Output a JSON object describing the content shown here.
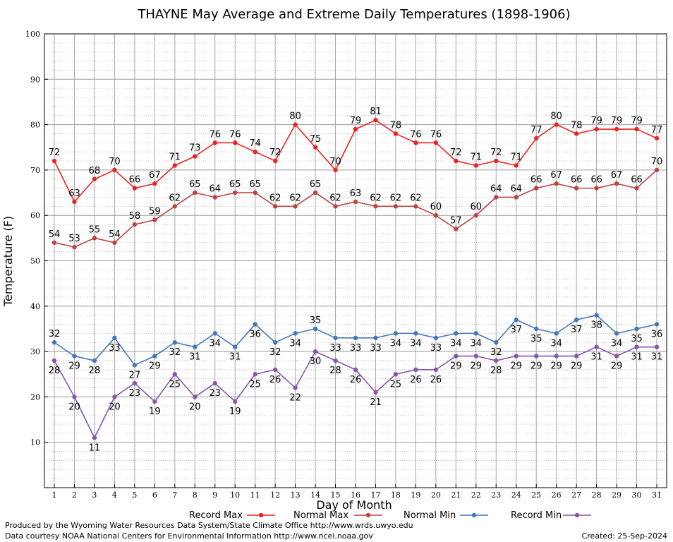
{
  "chart_data": {
    "type": "line",
    "title": "THAYNE May Average and Extreme Daily Temperatures (1898-1906)",
    "xlabel": "Day of Month",
    "ylabel": "Temperature (F)",
    "x": [
      1,
      2,
      3,
      4,
      5,
      6,
      7,
      8,
      9,
      10,
      11,
      12,
      13,
      14,
      15,
      16,
      17,
      18,
      19,
      20,
      21,
      22,
      23,
      24,
      25,
      26,
      27,
      28,
      29,
      30,
      31
    ],
    "ylim": [
      0,
      100
    ],
    "yticks": [
      10,
      20,
      30,
      40,
      50,
      60,
      70,
      80,
      90,
      100
    ],
    "grid": true,
    "legend_position": "bottom",
    "series": [
      {
        "name": "Record Max",
        "color": "#ee2222",
        "label_position": "above",
        "values": [
          72,
          63,
          68,
          70,
          66,
          67,
          71,
          73,
          76,
          76,
          74,
          72,
          80,
          75,
          70,
          79,
          81,
          78,
          76,
          76,
          72,
          71,
          72,
          71,
          77,
          80,
          78,
          79,
          79,
          79,
          77
        ]
      },
      {
        "name": "Normal Max",
        "color": "#bb4444",
        "label_position": "above",
        "values": [
          54,
          53,
          55,
          54,
          58,
          59,
          62,
          65,
          64,
          65,
          65,
          62,
          62,
          65,
          62,
          63,
          62,
          62,
          62,
          60,
          57,
          60,
          64,
          64,
          66,
          67,
          66,
          66,
          67,
          66,
          70
        ]
      },
      {
        "name": "Normal Min",
        "color": "#4477bb",
        "label_position": "mixed",
        "values": [
          32,
          29,
          28,
          33,
          27,
          29,
          32,
          31,
          34,
          31,
          36,
          32,
          34,
          35,
          33,
          33,
          33,
          34,
          34,
          33,
          34,
          34,
          32,
          37,
          35,
          34,
          37,
          38,
          34,
          35,
          36
        ],
        "label_above": [
          true,
          false,
          false,
          false,
          false,
          false,
          false,
          false,
          false,
          false,
          false,
          false,
          false,
          true,
          false,
          false,
          false,
          false,
          false,
          false,
          false,
          false,
          false,
          false,
          false,
          false,
          false,
          false,
          false,
          false,
          false
        ]
      },
      {
        "name": "Record Min",
        "color": "#8855aa",
        "label_position": "mixed",
        "values": [
          28,
          20,
          11,
          20,
          23,
          19,
          25,
          20,
          23,
          19,
          25,
          26,
          22,
          30,
          28,
          26,
          21,
          25,
          26,
          26,
          29,
          29,
          28,
          29,
          29,
          29,
          29,
          31,
          29,
          31,
          31
        ],
        "label_above": [
          false,
          false,
          false,
          false,
          false,
          false,
          false,
          false,
          false,
          false,
          false,
          false,
          false,
          false,
          false,
          false,
          false,
          false,
          false,
          false,
          false,
          false,
          false,
          false,
          false,
          false,
          false,
          false,
          false,
          false,
          false
        ]
      }
    ]
  },
  "footer": {
    "produced_by": "Produced by the Wyoming Water Resources Data System/State Climate Office http://www.wrds.uwyo.edu",
    "data_courtesy": "Data courtesy NOAA National Centers for Environmental Information http://www.ncei.noaa.gov",
    "created": "Created:  25-Sep-2024"
  }
}
